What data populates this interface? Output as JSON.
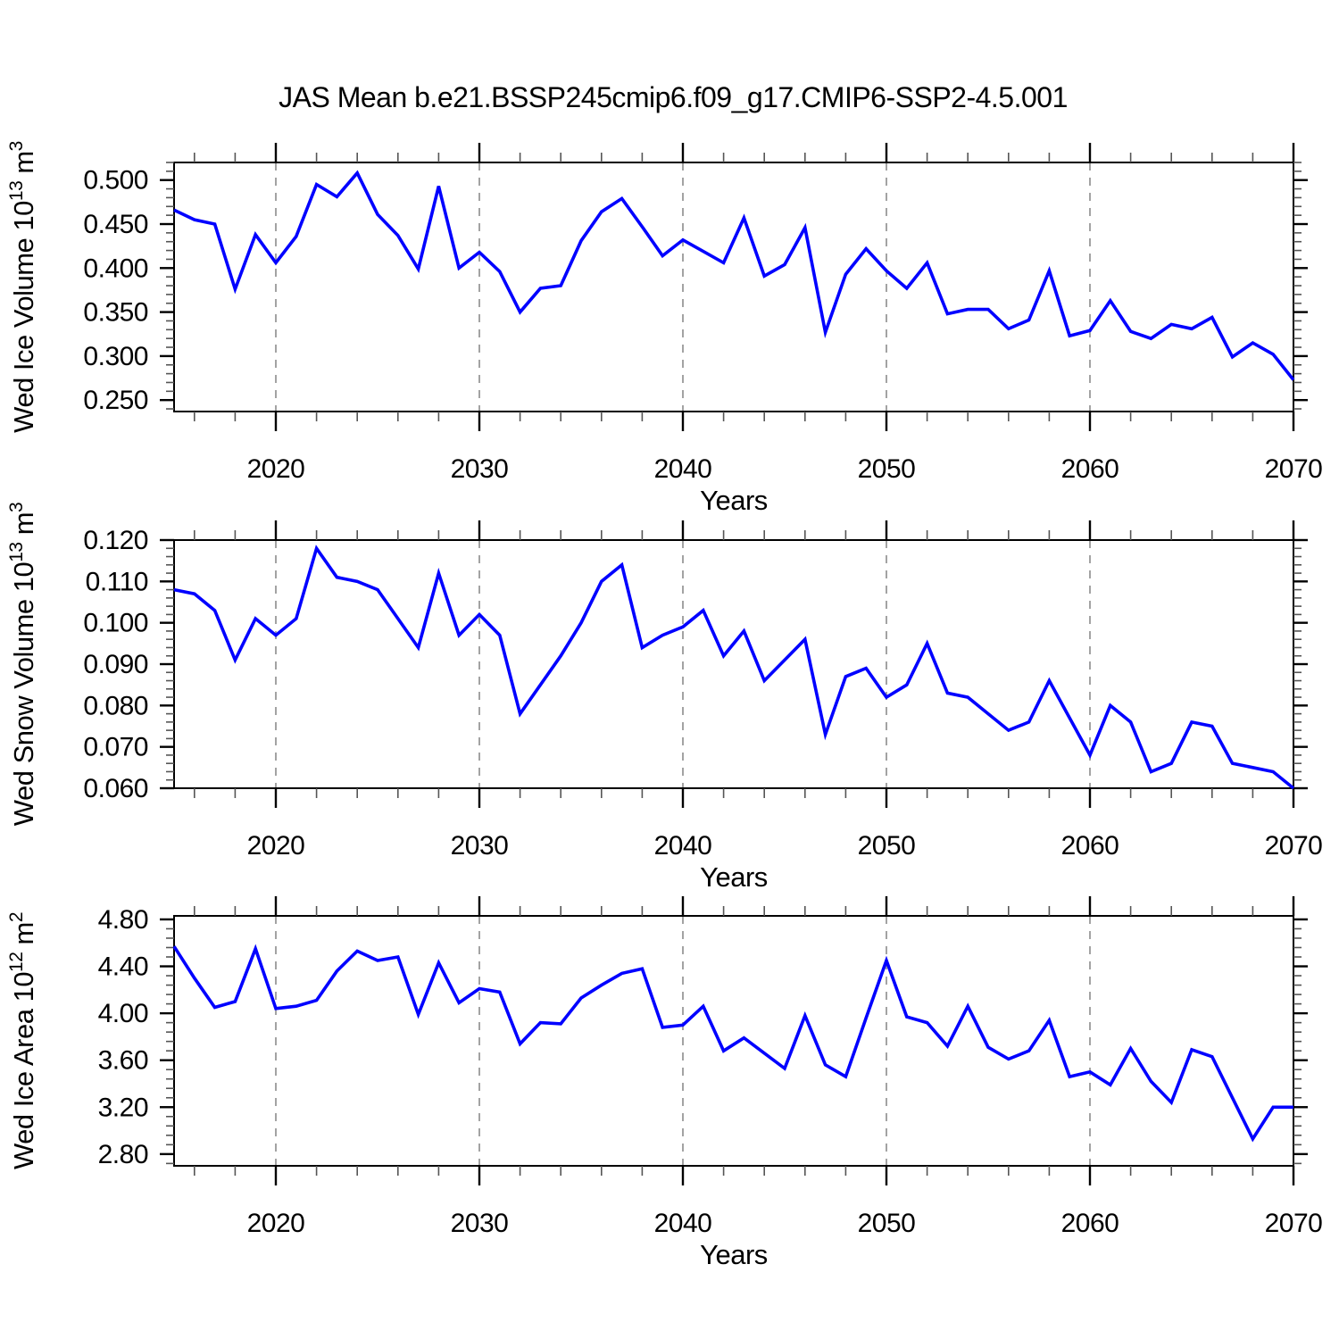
{
  "title": "JAS Mean b.e21.BSSP245cmip6.f09_g17.CMIP6-SSP2-4.5.001",
  "colors": {
    "line": "#0000ff",
    "axis": "#000000",
    "minor_tick": "#555555",
    "gridline": "#999999",
    "background": "#ffffff",
    "text": "#000000"
  },
  "x_axis": {
    "label": "Years",
    "xlim": [
      2015,
      2070
    ],
    "major_ticks": [
      2020,
      2030,
      2040,
      2050,
      2060,
      2070
    ],
    "major_tick_labels": [
      "2020",
      "2030",
      "2040",
      "2050",
      "2060",
      "2070"
    ],
    "minor_tick_step": 2,
    "gridline_years": [
      2020,
      2030,
      2040,
      2050,
      2060
    ],
    "grid_style": "dashed"
  },
  "chart_data": [
    {
      "type": "line",
      "panel": "top",
      "ylabel": "Wed Ice Volume 10^13 m^3",
      "ylabel_parts": [
        {
          "text": "Wed Ice Volume 10"
        },
        {
          "text": "13",
          "sup": true
        },
        {
          "text": " m"
        },
        {
          "text": "3",
          "sup": true
        }
      ],
      "xlabel": "Years",
      "x_start": 2015,
      "x_step": 1,
      "x_end": 2070,
      "ylim": [
        0.237,
        0.52
      ],
      "yticks": [
        0.25,
        0.3,
        0.35,
        0.4,
        0.45,
        0.5
      ],
      "ytick_labels": [
        "0.250",
        "0.300",
        "0.350",
        "0.400",
        "0.450",
        "0.500"
      ],
      "y_minor_step": 0.01,
      "values": [
        0.466,
        0.455,
        0.45,
        0.376,
        0.438,
        0.406,
        0.436,
        0.495,
        0.481,
        0.508,
        0.461,
        0.437,
        0.399,
        0.493,
        0.4,
        0.418,
        0.396,
        0.35,
        0.377,
        0.38,
        0.431,
        0.464,
        0.479,
        0.447,
        0.414,
        0.432,
        0.419,
        0.406,
        0.457,
        0.391,
        0.404,
        0.446,
        0.327,
        0.393,
        0.422,
        0.397,
        0.377,
        0.406,
        0.348,
        0.353,
        0.353,
        0.331,
        0.341,
        0.397,
        0.323,
        0.329,
        0.363,
        0.328,
        0.32,
        0.336,
        0.331,
        0.344,
        0.299,
        0.315,
        0.302,
        0.273
      ]
    },
    {
      "type": "line",
      "panel": "middle",
      "ylabel": "Wed Snow Volume 10^13 m^3",
      "ylabel_parts": [
        {
          "text": "Wed Snow Volume 10"
        },
        {
          "text": "13",
          "sup": true
        },
        {
          "text": " m"
        },
        {
          "text": "3",
          "sup": true
        }
      ],
      "xlabel": "Years",
      "x_start": 2015,
      "x_step": 1,
      "x_end": 2070,
      "ylim": [
        0.06,
        0.12
      ],
      "yticks": [
        0.06,
        0.07,
        0.08,
        0.09,
        0.1,
        0.11,
        0.12
      ],
      "ytick_labels": [
        "0.060",
        "0.070",
        "0.080",
        "0.090",
        "0.100",
        "0.110",
        "0.120"
      ],
      "y_minor_step": 0.002,
      "values": [
        0.108,
        0.107,
        0.103,
        0.091,
        0.101,
        0.097,
        0.101,
        0.118,
        0.111,
        0.11,
        0.108,
        0.101,
        0.094,
        0.112,
        0.097,
        0.102,
        0.097,
        0.078,
        0.085,
        0.092,
        0.1,
        0.11,
        0.114,
        0.094,
        0.097,
        0.099,
        0.103,
        0.092,
        0.098,
        0.086,
        0.091,
        0.096,
        0.073,
        0.087,
        0.089,
        0.082,
        0.085,
        0.095,
        0.083,
        0.082,
        0.078,
        0.074,
        0.076,
        0.086,
        0.077,
        0.068,
        0.08,
        0.076,
        0.064,
        0.066,
        0.076,
        0.075,
        0.066,
        0.065,
        0.064,
        0.06
      ]
    },
    {
      "type": "line",
      "panel": "bottom",
      "ylabel": "Wed Ice Area 10^12 m^2",
      "ylabel_parts": [
        {
          "text": "Wed Ice Area 10"
        },
        {
          "text": "12",
          "sup": true
        },
        {
          "text": " m"
        },
        {
          "text": "2",
          "sup": true
        }
      ],
      "xlabel": "Years",
      "x_start": 2015,
      "x_step": 1,
      "x_end": 2070,
      "ylim": [
        2.7,
        4.83
      ],
      "yticks": [
        2.8,
        3.2,
        3.6,
        4.0,
        4.4,
        4.8
      ],
      "ytick_labels": [
        "2.80",
        "3.20",
        "3.60",
        "4.00",
        "4.40",
        "4.80"
      ],
      "y_minor_step": 0.08,
      "values": [
        4.57,
        4.3,
        4.05,
        4.1,
        4.55,
        4.04,
        4.06,
        4.11,
        4.36,
        4.53,
        4.45,
        4.48,
        3.99,
        4.43,
        4.09,
        4.21,
        4.18,
        3.74,
        3.92,
        3.91,
        4.13,
        4.24,
        4.34,
        4.38,
        3.88,
        3.9,
        4.06,
        3.68,
        3.79,
        3.66,
        3.53,
        3.98,
        3.56,
        3.46,
        3.96,
        4.45,
        3.97,
        3.92,
        3.72,
        4.06,
        3.71,
        3.61,
        3.68,
        3.94,
        3.46,
        3.5,
        3.39,
        3.7,
        3.42,
        3.24,
        3.69,
        3.63,
        3.28,
        2.93,
        3.2,
        3.2
      ]
    }
  ]
}
